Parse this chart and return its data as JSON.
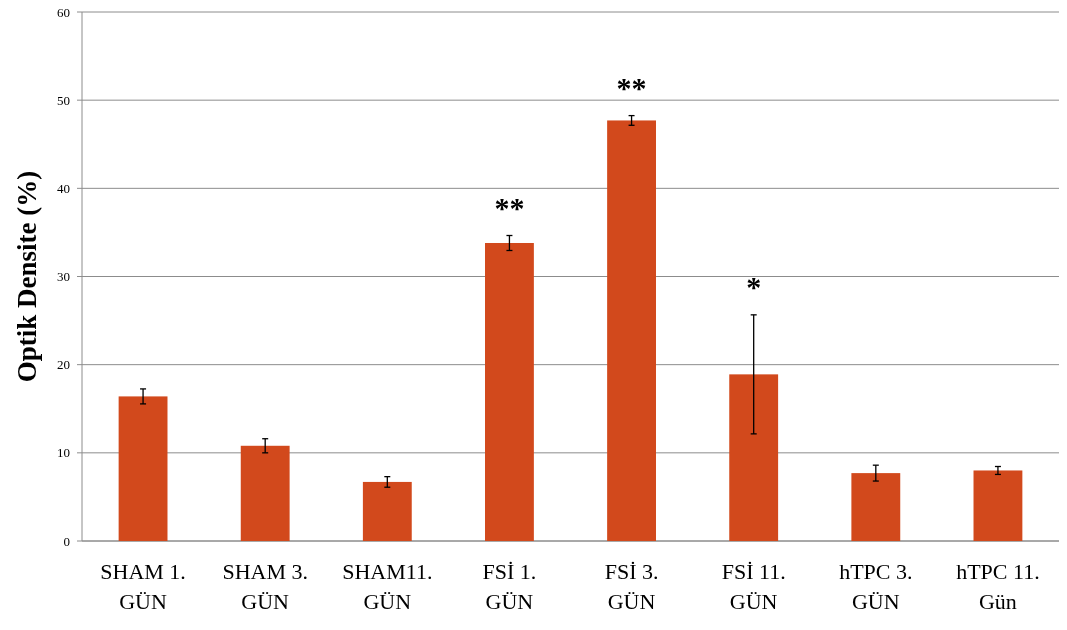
{
  "chart_data": {
    "type": "bar",
    "ylabel": "Optik Densite (%)",
    "categories": [
      "SHAM 1. GÜN",
      "SHAM 3. GÜN",
      "SHAM11. GÜN",
      "FSİ 1. GÜN",
      "FSİ 3. GÜN",
      "FSİ 11. GÜN",
      "hTPC 3. GÜN",
      "hTPC 11. Gün"
    ],
    "values": [
      16.4,
      10.8,
      6.7,
      33.8,
      47.7,
      18.9,
      7.7,
      8.0
    ],
    "errors": [
      0.85,
      0.8,
      0.6,
      0.85,
      0.55,
      6.75,
      0.9,
      0.45
    ],
    "color": "#d2491c",
    "ylim": [
      0,
      60
    ],
    "yticks": [
      0,
      10,
      20,
      30,
      40,
      50,
      60
    ],
    "grid": "y",
    "annotations": [
      {
        "text": "**",
        "x": "FSİ 1. GÜN",
        "y": 33.8
      },
      {
        "text": "**",
        "x": "FSİ 3. GÜN",
        "y": 47.7
      },
      {
        "text": "*",
        "x": "FSİ 11. GÜN",
        "y": 18.9
      }
    ]
  }
}
